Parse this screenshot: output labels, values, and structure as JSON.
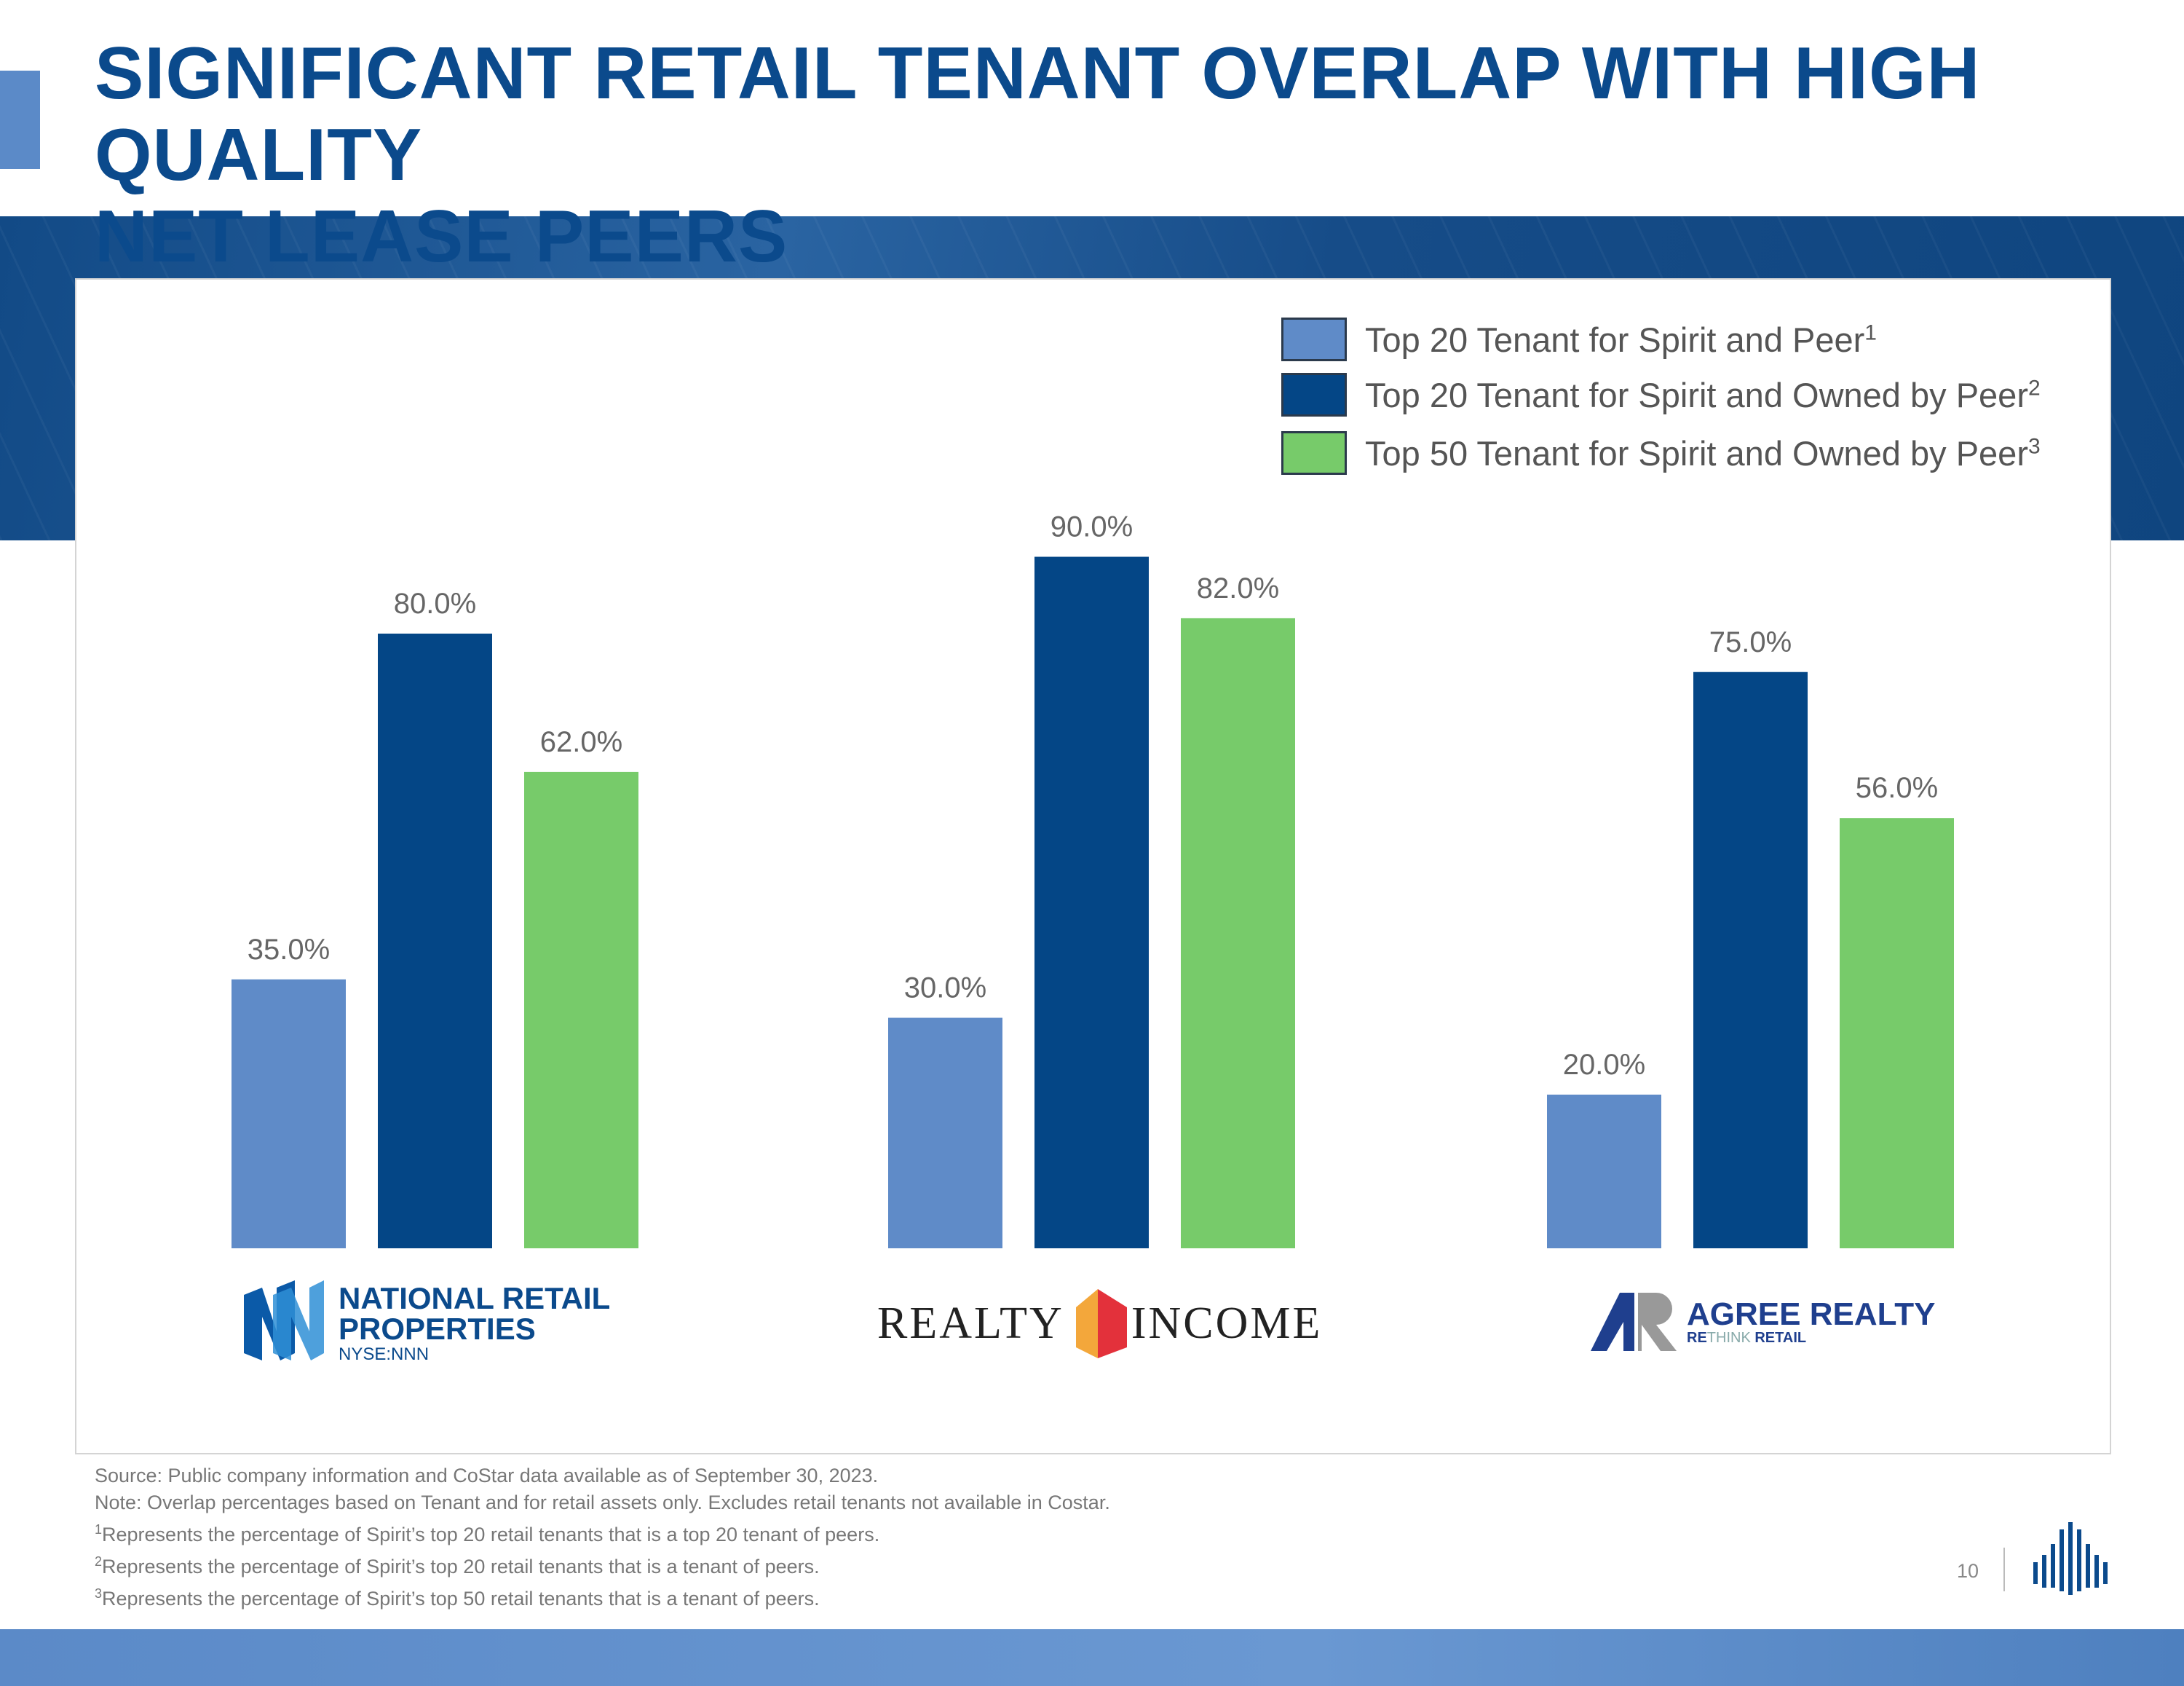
{
  "title_line1": "SIGNIFICANT RETAIL TENANT OVERLAP WITH HIGH QUALITY",
  "title_line2": "NET LEASE PEERS",
  "chart_data": {
    "type": "bar",
    "categories": [
      "National Retail Properties",
      "Realty Income",
      "Agree Realty"
    ],
    "series": [
      {
        "name": "Top 20 Tenant for Spirit and Peer",
        "footnote": "1",
        "color": "#5f8bc8",
        "values": [
          35.0,
          30.0,
          20.0
        ]
      },
      {
        "name": "Top 20 Tenant for Spirit and Owned by Peer",
        "footnote": "2",
        "color": "#044686",
        "values": [
          80.0,
          90.0,
          75.0
        ]
      },
      {
        "name": "Top 50 Tenant for Spirit and Owned by Peer",
        "footnote": "3",
        "color": "#77cb6a",
        "values": [
          62.0,
          82.0,
          56.0
        ]
      }
    ],
    "ylim": [
      0,
      100
    ],
    "value_format": "0.0%",
    "legend_position": "top-right",
    "grid": false
  },
  "logos": {
    "nnn": {
      "line1": "NATIONAL RETAIL",
      "line2": "PROPERTIES",
      "ticker": "NYSE:NNN"
    },
    "realty_income": {
      "left": "REALTY",
      "right": "INCOME"
    },
    "agree": {
      "name": "AGREE REALTY",
      "tag_a": "RE",
      "tag_b": "THINK",
      "tag_c": "RETAIL"
    }
  },
  "footnotes": {
    "source": "Source: Public company information and CoStar data available as of September 30, 2023.",
    "note": "Note: Overlap percentages based on Tenant and for retail assets only. Excludes retail tenants not available in Costar.",
    "f1": "Represents the percentage of Spirit’s top 20 retail tenants that is a top 20 tenant of peers.",
    "f2": "Represents the percentage of Spirit’s top 20 retail tenants that is a tenant of peers.",
    "f3": "Represents the percentage of Spirit’s top 50 retail tenants that is a tenant of peers."
  },
  "page_number": "10"
}
